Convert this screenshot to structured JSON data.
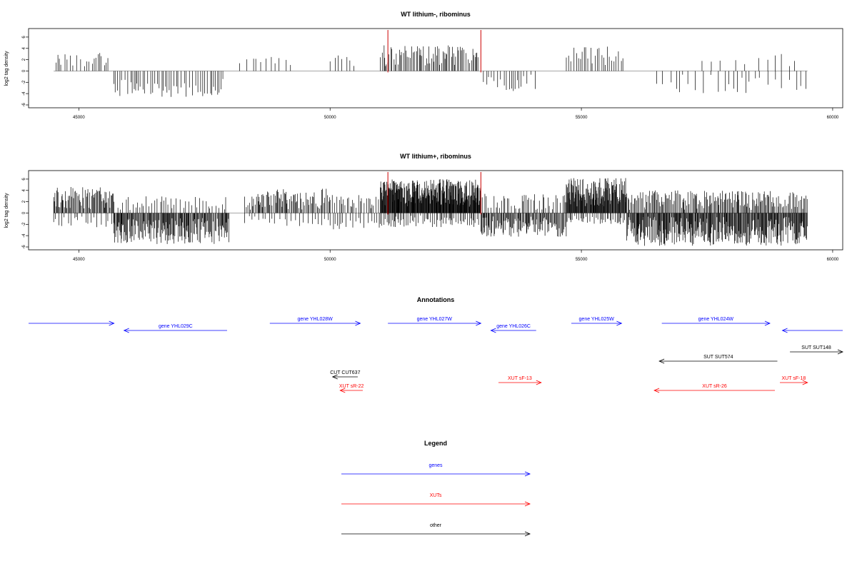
{
  "chart_data": [
    {
      "type": "bar",
      "title": "WT lithium-, ribominus",
      "ylabel": "log2 tag density",
      "xlabel": "",
      "xlim": [
        44000,
        60200
      ],
      "ylim": [
        -6,
        7
      ],
      "x_ticks": [
        45000,
        50000,
        55000,
        60000
      ],
      "y_ticks": [
        6,
        4,
        2,
        0,
        -2,
        -4,
        -6
      ],
      "grid": false,
      "segments": [
        {
          "x0": 44550,
          "x1": 45650,
          "min": 0.5,
          "max": 3.4,
          "sign": 1,
          "step": 55,
          "seed": 1
        },
        {
          "x0": 45700,
          "x1": 47900,
          "min": 1.0,
          "max": 4.6,
          "sign": -1,
          "step": 45,
          "seed": 2
        },
        {
          "x0": 48200,
          "x1": 49300,
          "min": 0.6,
          "max": 2.6,
          "sign": 1,
          "step": 90,
          "seed": 3
        },
        {
          "x0": 50000,
          "x1": 50500,
          "min": 0.8,
          "max": 3.0,
          "sign": 1,
          "step": 70,
          "seed": 4
        },
        {
          "x0": 51000,
          "x1": 52950,
          "min": 0.8,
          "max": 4.6,
          "sign": 1,
          "step": 28,
          "seed": 5
        },
        {
          "x0": 53050,
          "x1": 54100,
          "min": 0.6,
          "max": 3.6,
          "sign": -1,
          "step": 55,
          "seed": 6
        },
        {
          "x0": 54700,
          "x1": 55850,
          "min": 0.6,
          "max": 4.4,
          "sign": 1,
          "step": 40,
          "seed": 7
        },
        {
          "x0": 56500,
          "x1": 59500,
          "min": 0.6,
          "max": 4.0,
          "sign": -1,
          "step": 110,
          "seed": 8
        },
        {
          "x0": 57400,
          "x1": 59300,
          "min": 0.5,
          "max": 3.0,
          "sign": 1,
          "step": 200,
          "seed": 9
        }
      ],
      "markers": [
        51150,
        53000
      ]
    },
    {
      "type": "bar",
      "title": "WT lithium+, ribominus",
      "ylabel": "log2 tag density",
      "xlabel": "",
      "xlim": [
        44000,
        60200
      ],
      "ylim": [
        -6,
        7
      ],
      "x_ticks": [
        45000,
        50000,
        55000,
        60000
      ],
      "y_ticks": [
        6,
        4,
        2,
        0,
        -2,
        -4,
        -6
      ],
      "grid": false,
      "segments": [
        {
          "x0": 44500,
          "x1": 45700,
          "min": 0.6,
          "max": 4.6,
          "sign": 1,
          "step": 18,
          "seed": 11
        },
        {
          "x0": 44500,
          "x1": 45700,
          "min": 0.4,
          "max": 2.5,
          "sign": -1,
          "step": 60,
          "seed": 12
        },
        {
          "x0": 45700,
          "x1": 48000,
          "min": 0.8,
          "max": 5.5,
          "sign": -1,
          "step": 14,
          "seed": 13
        },
        {
          "x0": 45700,
          "x1": 48000,
          "min": 0.4,
          "max": 3.0,
          "sign": 1,
          "step": 50,
          "seed": 14
        },
        {
          "x0": 48300,
          "x1": 50000,
          "min": 0.5,
          "max": 4.3,
          "sign": 1,
          "step": 22,
          "seed": 15
        },
        {
          "x0": 48300,
          "x1": 50000,
          "min": 0.4,
          "max": 2.5,
          "sign": -1,
          "step": 70,
          "seed": 16
        },
        {
          "x0": 50000,
          "x1": 51000,
          "min": 0.5,
          "max": 3.2,
          "sign": 1,
          "step": 35,
          "seed": 17
        },
        {
          "x0": 50000,
          "x1": 51000,
          "min": 0.4,
          "max": 3.0,
          "sign": -1,
          "step": 60,
          "seed": 18
        },
        {
          "x0": 51000,
          "x1": 53000,
          "min": 1.0,
          "max": 6.0,
          "sign": 1,
          "step": 8,
          "seed": 19
        },
        {
          "x0": 51000,
          "x1": 53000,
          "min": 0.4,
          "max": 2.5,
          "sign": -1,
          "step": 30,
          "seed": 20
        },
        {
          "x0": 53000,
          "x1": 54700,
          "min": 0.6,
          "max": 4.2,
          "sign": -1,
          "step": 16,
          "seed": 21
        },
        {
          "x0": 53000,
          "x1": 54700,
          "min": 0.4,
          "max": 3.4,
          "sign": 1,
          "step": 40,
          "seed": 22
        },
        {
          "x0": 54700,
          "x1": 55900,
          "min": 1.0,
          "max": 6.2,
          "sign": 1,
          "step": 9,
          "seed": 23
        },
        {
          "x0": 54700,
          "x1": 55900,
          "min": 0.4,
          "max": 2.0,
          "sign": -1,
          "step": 35,
          "seed": 24
        },
        {
          "x0": 55900,
          "x1": 59500,
          "min": 0.6,
          "max": 5.8,
          "sign": -1,
          "step": 12,
          "seed": 25
        },
        {
          "x0": 55900,
          "x1": 59500,
          "min": 0.5,
          "max": 4.0,
          "sign": 1,
          "step": 20,
          "seed": 26
        }
      ],
      "markers": [
        51150,
        53000
      ]
    }
  ],
  "annotations": {
    "title": "Annotations",
    "features": [
      {
        "label": "",
        "kind": "gene",
        "start": 44000,
        "end": 45700,
        "dir": "right",
        "row": 0
      },
      {
        "label": "gene YHL029C",
        "kind": "gene",
        "start": 45900,
        "end": 47950,
        "dir": "left",
        "row": 1
      },
      {
        "label": "gene YHL028W",
        "kind": "gene",
        "start": 48800,
        "end": 50600,
        "dir": "right",
        "row": 0
      },
      {
        "label": "gene YHL027W",
        "kind": "gene",
        "start": 51150,
        "end": 53000,
        "dir": "right",
        "row": 0
      },
      {
        "label": "gene YHL026C",
        "kind": "gene",
        "start": 53200,
        "end": 54100,
        "dir": "left",
        "row": 1
      },
      {
        "label": "gene YHL025W",
        "kind": "gene",
        "start": 54800,
        "end": 55800,
        "dir": "right",
        "row": 0
      },
      {
        "label": "gene YHL024W",
        "kind": "gene",
        "start": 56600,
        "end": 58750,
        "dir": "right",
        "row": 0
      },
      {
        "label": "",
        "kind": "gene",
        "start": 59000,
        "end": 60200,
        "dir": "left",
        "row": 1
      },
      {
        "label": "SUT SUT574",
        "kind": "other",
        "start": 56550,
        "end": 58900,
        "dir": "left",
        "row": 2
      },
      {
        "label": "SUT SUT148",
        "kind": "other",
        "start": 59150,
        "end": 60200,
        "dir": "right",
        "row": 3
      },
      {
        "label": "CUT CUT637",
        "kind": "other",
        "start": 50050,
        "end": 50550,
        "dir": "left",
        "row": 4
      },
      {
        "label": "XUT sR-22",
        "kind": "xut",
        "start": 50200,
        "end": 50650,
        "dir": "left",
        "row": 6
      },
      {
        "label": "XUT sF-13",
        "kind": "xut",
        "start": 53350,
        "end": 54200,
        "dir": "right",
        "row": 5
      },
      {
        "label": "XUT sR-26",
        "kind": "xut",
        "start": 56450,
        "end": 58850,
        "dir": "left",
        "row": 6
      },
      {
        "label": "XUT sF-18",
        "kind": "xut",
        "start": 58950,
        "end": 59500,
        "dir": "right",
        "row": 5
      }
    ]
  },
  "legend": {
    "title": "Legend",
    "items": [
      {
        "label": "genes",
        "kind": "gene"
      },
      {
        "label": "XUTs",
        "kind": "xut"
      },
      {
        "label": "other",
        "kind": "other"
      }
    ]
  },
  "colors": {
    "gene": "#0000ff",
    "xut": "#ff0000",
    "other": "#000000",
    "baseline": "#999999",
    "marker": "#cc0000"
  }
}
